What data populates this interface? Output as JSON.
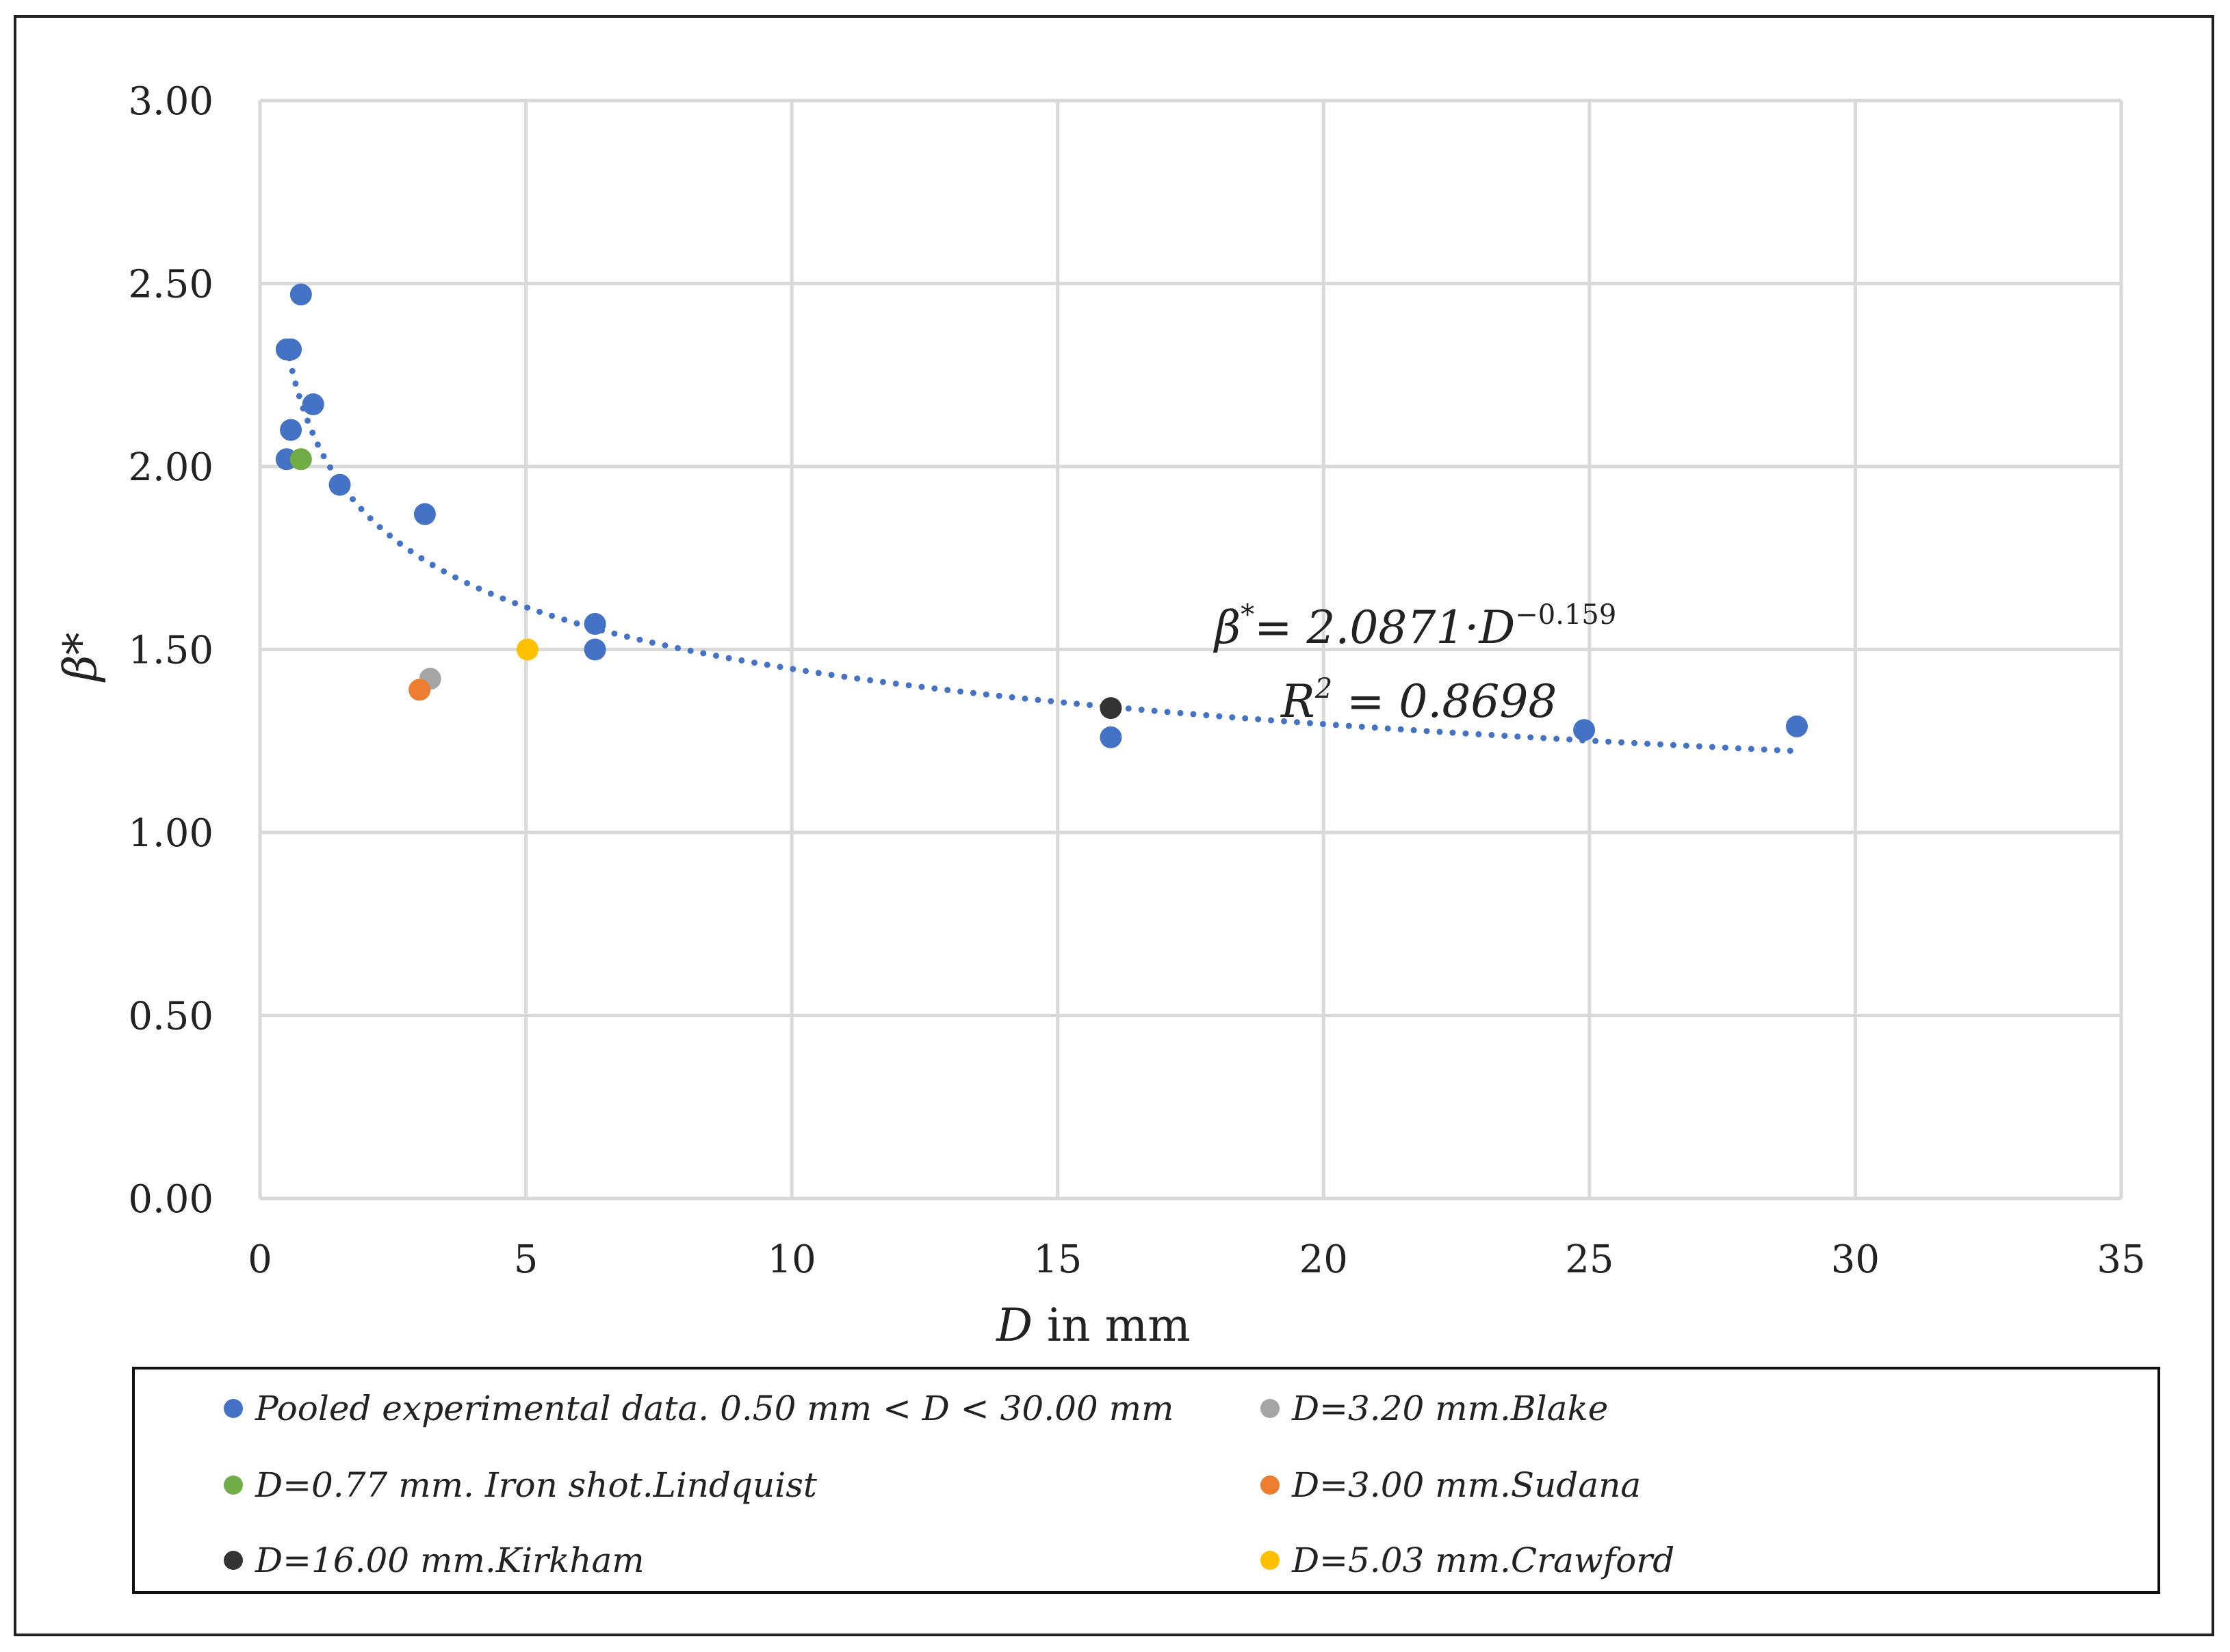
{
  "chart_data": {
    "type": "scatter",
    "xlabel_var": "D",
    "xlabel_rest": " in mm",
    "ylabel": "β*",
    "xlim": [
      0,
      35
    ],
    "ylim": [
      0,
      3
    ],
    "x_ticks": [
      "0",
      "5",
      "10",
      "15",
      "20",
      "25",
      "30",
      "35"
    ],
    "y_ticks": [
      "0.00",
      "0.50",
      "1.00",
      "1.50",
      "2.00",
      "2.50",
      "3.00"
    ],
    "grid": true,
    "legend_position": "bottom",
    "series": [
      {
        "name": "Pooled experimental data. 0.50 mm < D < 30.00 mm",
        "color": "#4472C4",
        "points": [
          [
            0.5,
            2.32
          ],
          [
            0.58,
            2.32
          ],
          [
            0.77,
            2.47
          ],
          [
            1.0,
            2.17
          ],
          [
            0.58,
            2.1
          ],
          [
            0.5,
            2.02
          ],
          [
            1.5,
            1.95
          ],
          [
            3.1,
            1.87
          ],
          [
            6.3,
            1.57
          ],
          [
            6.3,
            1.5
          ],
          [
            16.0,
            1.26
          ],
          [
            24.9,
            1.28
          ],
          [
            28.9,
            1.29
          ]
        ]
      },
      {
        "name": "D=3.20 mm.Blake",
        "color": "#A5A5A5",
        "points": [
          [
            3.2,
            1.42
          ]
        ]
      },
      {
        "name": "D=0.77 mm. Iron shot.Lindquist",
        "color": "#70AD47",
        "points": [
          [
            0.77,
            2.02
          ]
        ]
      },
      {
        "name": "D=3.00 mm.Sudana",
        "color": "#ED7D31",
        "points": [
          [
            3.0,
            1.39
          ]
        ]
      },
      {
        "name": "D=16.00 mm.Kirkham",
        "color": "#333333",
        "points": [
          [
            16.0,
            1.34
          ]
        ]
      },
      {
        "name": "D=5.03 mm.Crawford",
        "color": "#FFC000",
        "points": [
          [
            5.03,
            1.5
          ]
        ]
      }
    ],
    "trendline": {
      "type": "power",
      "a": 2.0871,
      "b": -0.159,
      "x_range": [
        0.5,
        28.9
      ],
      "color": "#4472C4",
      "style": "dotted"
    },
    "annotations": {
      "equation_prefix": "β",
      "equation_sup": "*",
      "equation_body": "= 2.0871·D",
      "equation_exp": "−0.159",
      "r2_prefix": "R",
      "r2_sup": "2",
      "r2_body": " = 0.8698"
    }
  }
}
